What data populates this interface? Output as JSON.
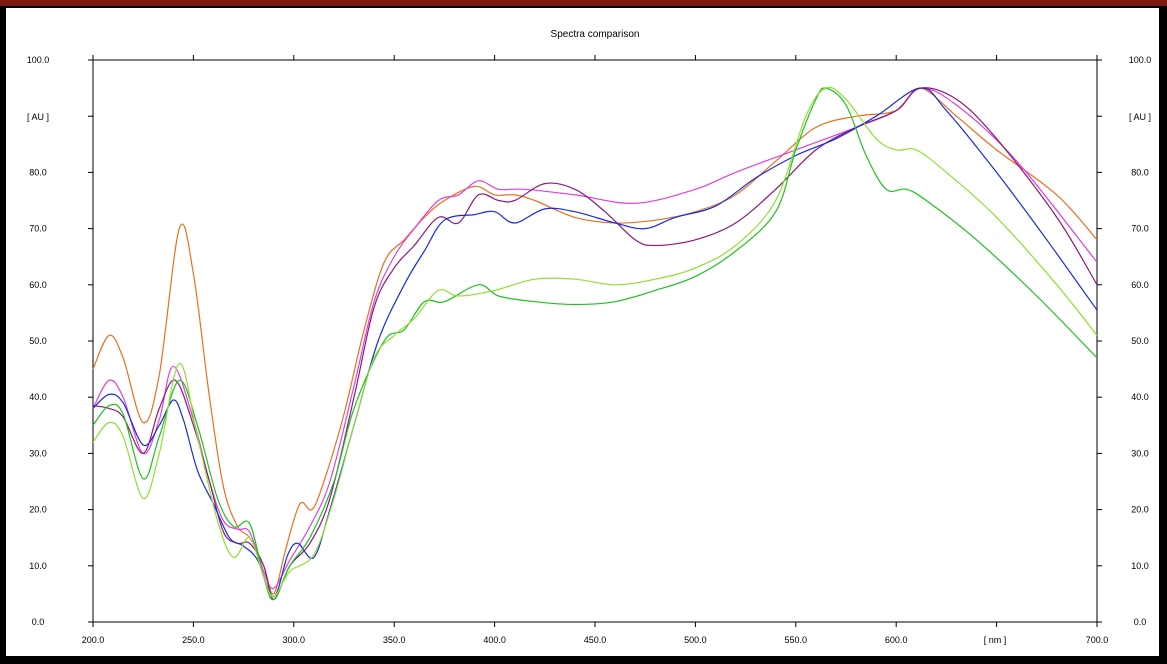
{
  "chart_data": {
    "type": "line",
    "title": "Spectra comparison",
    "xlabel": "[ nm ]",
    "ylabel": "[ AU ]",
    "xlim": [
      200,
      700
    ],
    "ylim": [
      0,
      100
    ],
    "x_ticks": [
      "200.0",
      "250.0",
      "300.0",
      "350.0",
      "400.0",
      "450.0",
      "500.0",
      "550.0",
      "600.0",
      "700.0"
    ],
    "y_ticks": [
      "0.0",
      "10.0",
      "20.0",
      "30.0",
      "40.0",
      "50.0",
      "60.0",
      "70.0",
      "80.0",
      "100.0"
    ],
    "y_ticks_right": [
      "0.0",
      "10.0",
      "20.0",
      "30.0",
      "40.0",
      "50.0",
      "60.0",
      "70.0",
      "80.0",
      "100.0"
    ],
    "grid": false,
    "series": [
      {
        "color": "#e87020",
        "points": [
          [
            200,
            45
          ],
          [
            208,
            51
          ],
          [
            215,
            47
          ],
          [
            225,
            35.5
          ],
          [
            233,
            44
          ],
          [
            243,
            70
          ],
          [
            250,
            62
          ],
          [
            258,
            40
          ],
          [
            265,
            24
          ],
          [
            272,
            17
          ],
          [
            278,
            15
          ],
          [
            285,
            10
          ],
          [
            290,
            5
          ],
          [
            296,
            13
          ],
          [
            303,
            21
          ],
          [
            309,
            20
          ],
          [
            315,
            25
          ],
          [
            325,
            37
          ],
          [
            335,
            52
          ],
          [
            345,
            64
          ],
          [
            355,
            68
          ],
          [
            365,
            72
          ],
          [
            375,
            75
          ],
          [
            390,
            77.5
          ],
          [
            400,
            76
          ],
          [
            410,
            76
          ],
          [
            420,
            75
          ],
          [
            440,
            72
          ],
          [
            460,
            71
          ],
          [
            480,
            71.5
          ],
          [
            500,
            73
          ],
          [
            520,
            76
          ],
          [
            540,
            82
          ],
          [
            560,
            88
          ],
          [
            580,
            90
          ],
          [
            600,
            91
          ],
          [
            612,
            95
          ],
          [
            630,
            90
          ],
          [
            650,
            84
          ],
          [
            680,
            76
          ],
          [
            700,
            68
          ]
        ]
      },
      {
        "color": "#e040e0",
        "points": [
          [
            200,
            38
          ],
          [
            208,
            43
          ],
          [
            215,
            40
          ],
          [
            225,
            30
          ],
          [
            233,
            36
          ],
          [
            240,
            45.5
          ],
          [
            250,
            36
          ],
          [
            258,
            25
          ],
          [
            265,
            18
          ],
          [
            272,
            16.5
          ],
          [
            278,
            16
          ],
          [
            285,
            9
          ],
          [
            290,
            6
          ],
          [
            298,
            11
          ],
          [
            308,
            17
          ],
          [
            318,
            25
          ],
          [
            330,
            42
          ],
          [
            340,
            57
          ],
          [
            350,
            65
          ],
          [
            360,
            70
          ],
          [
            372,
            75
          ],
          [
            382,
            76
          ],
          [
            392,
            78.5
          ],
          [
            402,
            77
          ],
          [
            415,
            77
          ],
          [
            440,
            76
          ],
          [
            470,
            74.5
          ],
          [
            500,
            77
          ],
          [
            520,
            80
          ],
          [
            550,
            84
          ],
          [
            580,
            88
          ],
          [
            600,
            91
          ],
          [
            612,
            95
          ],
          [
            630,
            92
          ],
          [
            660,
            82
          ],
          [
            700,
            64
          ]
        ]
      },
      {
        "color": "#8b1a7a",
        "points": [
          [
            200,
            38.5
          ],
          [
            208,
            38
          ],
          [
            215,
            36.5
          ],
          [
            225,
            30
          ],
          [
            233,
            38
          ],
          [
            241,
            43
          ],
          [
            250,
            35
          ],
          [
            258,
            25
          ],
          [
            265,
            16
          ],
          [
            272,
            14
          ],
          [
            278,
            14
          ],
          [
            285,
            10
          ],
          [
            290,
            4
          ],
          [
            298,
            10
          ],
          [
            308,
            14
          ],
          [
            318,
            22
          ],
          [
            330,
            40
          ],
          [
            340,
            56
          ],
          [
            350,
            63
          ],
          [
            360,
            67
          ],
          [
            372,
            72
          ],
          [
            382,
            71
          ],
          [
            392,
            76
          ],
          [
            402,
            75
          ],
          [
            410,
            75
          ],
          [
            425,
            78
          ],
          [
            440,
            77
          ],
          [
            455,
            73
          ],
          [
            470,
            68
          ],
          [
            480,
            67
          ],
          [
            500,
            68
          ],
          [
            520,
            71
          ],
          [
            540,
            77
          ],
          [
            560,
            84
          ],
          [
            580,
            88
          ],
          [
            600,
            91
          ],
          [
            612,
            95
          ],
          [
            630,
            93
          ],
          [
            650,
            86
          ],
          [
            680,
            72
          ],
          [
            700,
            60
          ]
        ]
      },
      {
        "color": "#1a2ae0",
        "points": [
          [
            200,
            38
          ],
          [
            208,
            40.5
          ],
          [
            215,
            39
          ],
          [
            225,
            31.5
          ],
          [
            233,
            35
          ],
          [
            240,
            39.5
          ],
          [
            245,
            36
          ],
          [
            252,
            27
          ],
          [
            260,
            21
          ],
          [
            268,
            15
          ],
          [
            275,
            13.5
          ],
          [
            282,
            11
          ],
          [
            290,
            4.5
          ],
          [
            297,
            12
          ],
          [
            302,
            14
          ],
          [
            310,
            11.5
          ],
          [
            318,
            20
          ],
          [
            330,
            35
          ],
          [
            342,
            50
          ],
          [
            355,
            60
          ],
          [
            365,
            66
          ],
          [
            375,
            71.5
          ],
          [
            390,
            72.5
          ],
          [
            400,
            73
          ],
          [
            410,
            71
          ],
          [
            425,
            73.5
          ],
          [
            440,
            73
          ],
          [
            460,
            71
          ],
          [
            475,
            70
          ],
          [
            490,
            72
          ],
          [
            510,
            74
          ],
          [
            530,
            79
          ],
          [
            550,
            83
          ],
          [
            570,
            86
          ],
          [
            590,
            90
          ],
          [
            612,
            95
          ],
          [
            625,
            91
          ],
          [
            650,
            80
          ],
          [
            675,
            68
          ],
          [
            700,
            55.5
          ]
        ]
      },
      {
        "color": "#20c020",
        "points": [
          [
            200,
            35
          ],
          [
            208,
            38.5
          ],
          [
            215,
            37
          ],
          [
            225,
            25.5
          ],
          [
            233,
            33
          ],
          [
            243,
            43
          ],
          [
            252,
            35
          ],
          [
            262,
            22
          ],
          [
            270,
            17
          ],
          [
            278,
            17.5
          ],
          [
            285,
            8
          ],
          [
            290,
            4
          ],
          [
            298,
            10
          ],
          [
            308,
            15
          ],
          [
            320,
            25
          ],
          [
            330,
            38
          ],
          [
            345,
            50
          ],
          [
            355,
            52
          ],
          [
            365,
            57
          ],
          [
            375,
            57
          ],
          [
            392,
            60
          ],
          [
            402,
            58
          ],
          [
            420,
            57
          ],
          [
            440,
            56.5
          ],
          [
            460,
            57
          ],
          [
            480,
            59
          ],
          [
            500,
            61.5
          ],
          [
            520,
            66
          ],
          [
            540,
            73
          ],
          [
            550,
            84
          ],
          [
            560,
            93
          ],
          [
            565,
            95
          ],
          [
            575,
            92
          ],
          [
            585,
            83
          ],
          [
            595,
            77
          ],
          [
            605,
            77
          ],
          [
            615,
            75
          ],
          [
            640,
            68
          ],
          [
            670,
            58
          ],
          [
            700,
            47
          ]
        ]
      },
      {
        "color": "#90e030",
        "points": [
          [
            200,
            32
          ],
          [
            208,
            35.5
          ],
          [
            215,
            33
          ],
          [
            225,
            22
          ],
          [
            233,
            30
          ],
          [
            243,
            46
          ],
          [
            252,
            33
          ],
          [
            262,
            18
          ],
          [
            270,
            11.5
          ],
          [
            278,
            15
          ],
          [
            285,
            8
          ],
          [
            290,
            4.5
          ],
          [
            298,
            9
          ],
          [
            310,
            12
          ],
          [
            320,
            22
          ],
          [
            330,
            35
          ],
          [
            340,
            47
          ],
          [
            350,
            51
          ],
          [
            360,
            54
          ],
          [
            372,
            59
          ],
          [
            382,
            58
          ],
          [
            400,
            59
          ],
          [
            420,
            61
          ],
          [
            440,
            61
          ],
          [
            460,
            60
          ],
          [
            480,
            61
          ],
          [
            500,
            63
          ],
          [
            520,
            67
          ],
          [
            540,
            75
          ],
          [
            555,
            90
          ],
          [
            565,
            95
          ],
          [
            575,
            93
          ],
          [
            590,
            86
          ],
          [
            600,
            84
          ],
          [
            610,
            84
          ],
          [
            625,
            80
          ],
          [
            650,
            72
          ],
          [
            680,
            60
          ],
          [
            700,
            51
          ]
        ]
      }
    ]
  }
}
